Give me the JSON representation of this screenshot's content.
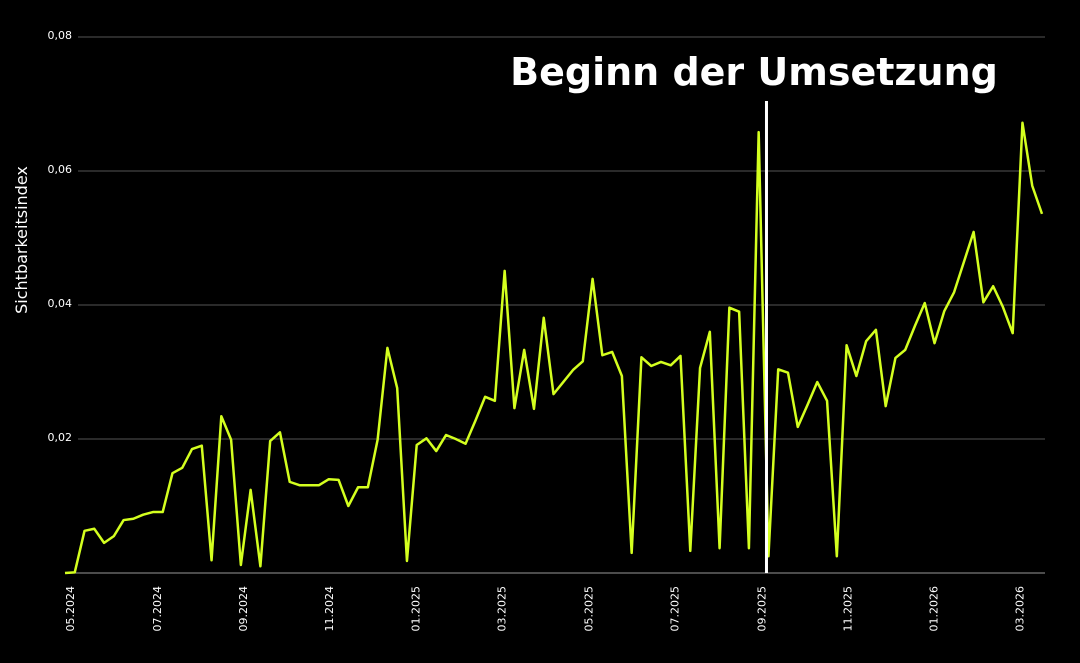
{
  "chart_data": {
    "type": "line",
    "y_label": "Sichtbarkeitsindex",
    "color": "#d4ff1f",
    "values": [
      0,
      0.0001,
      0.0063,
      0.0066,
      0.0045,
      0.0055,
      0.0079,
      0.0081,
      0.0087,
      0.0091,
      0.0091,
      0.0149,
      0.0157,
      0.0185,
      0.019,
      0.0019,
      0.0234,
      0.0199,
      0.0012,
      0.0124,
      0.001,
      0.0197,
      0.021,
      0.0136,
      0.0131,
      0.0131,
      0.0131,
      0.014,
      0.0139,
      0.01,
      0.0128,
      0.0128,
      0.0199,
      0.0336,
      0.0276,
      0.0018,
      0.0191,
      0.0201,
      0.0182,
      0.0206,
      0.02,
      0.0193,
      0.0227,
      0.0263,
      0.0257,
      0.0451,
      0.0246,
      0.0333,
      0.0245,
      0.0381,
      0.0267,
      0.0285,
      0.0303,
      0.0316,
      0.0439,
      0.0325,
      0.033,
      0.0294,
      0.003,
      0.0322,
      0.0309,
      0.0315,
      0.031,
      0.0324,
      0.0033,
      0.0306,
      0.036,
      0.0037,
      0.0396,
      0.039,
      0.0037,
      0.0658,
      0.0025,
      0.0304,
      0.0299,
      0.0218,
      0.0251,
      0.0285,
      0.0257,
      0.0025,
      0.034,
      0.0294,
      0.0346,
      0.0363,
      0.0249,
      0.0321,
      0.0333,
      0.0369,
      0.0403,
      0.0343,
      0.0391,
      0.0419,
      0.0464,
      0.0509,
      0.0404,
      0.0428,
      0.0397,
      0.0358,
      0.0672,
      0.0578,
      0.0536
    ],
    "xlim": [
      0,
      100
    ],
    "xticks": [
      {
        "value": 0.5,
        "label": "05.2024"
      },
      {
        "value": 9.4,
        "label": "07.2024"
      },
      {
        "value": 18.2,
        "label": "09.2024"
      },
      {
        "value": 27.0,
        "label": "11.2024"
      },
      {
        "value": 35.9,
        "label": "01.2025"
      },
      {
        "value": 44.7,
        "label": "03.2025"
      },
      {
        "value": 53.6,
        "label": "05.2025"
      },
      {
        "value": 62.4,
        "label": "07.2025"
      },
      {
        "value": 71.3,
        "label": "09.2025"
      },
      {
        "value": 80.1,
        "label": "11.2025"
      },
      {
        "value": 88.9,
        "label": "01.2026"
      },
      {
        "value": 97.7,
        "label": "03.2026"
      }
    ],
    "ylim": [
      0,
      0.08
    ],
    "yticks": [
      {
        "value": 0.02,
        "label": "0,02"
      },
      {
        "value": 0.04,
        "label": "0,04"
      },
      {
        "value": 0.06,
        "label": "0,06"
      },
      {
        "value": 0.08,
        "label": "0,08"
      }
    ],
    "grid": true,
    "annotation": {
      "text": "Beginn der Umsetzung",
      "x": 71.8
    }
  }
}
